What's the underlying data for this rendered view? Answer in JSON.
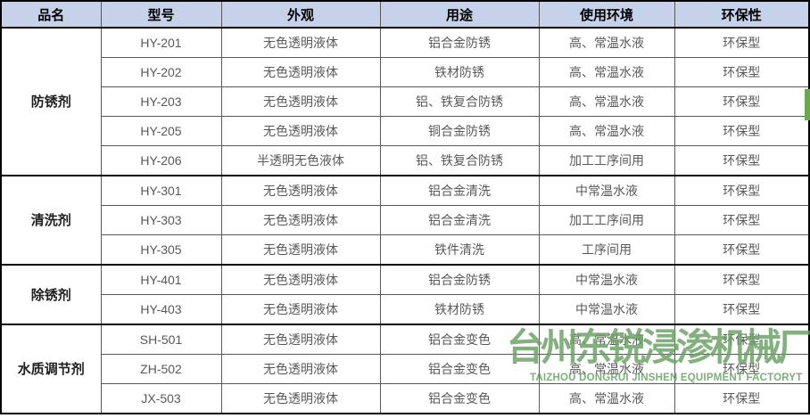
{
  "table": {
    "headers": [
      "品名",
      "型号",
      "外观",
      "用途",
      "使用环境",
      "环保性"
    ],
    "groups": [
      {
        "category": "防锈剂",
        "rows": [
          {
            "model": "HY-201",
            "appearance": "无色透明液体",
            "usage": "铝合金防锈",
            "environment": "高、常温水液",
            "eco": "环保型"
          },
          {
            "model": "HY-202",
            "appearance": "无色透明液体",
            "usage": "铁材防锈",
            "environment": "高、常温水液",
            "eco": "环保型"
          },
          {
            "model": "HY-203",
            "appearance": "无色透明液体",
            "usage": "铝、铁复合防锈",
            "environment": "高、常温水液",
            "eco": "环保型"
          },
          {
            "model": "HY-205",
            "appearance": "无色透明液体",
            "usage": "铜合金防锈",
            "environment": "高、常温水液",
            "eco": "环保型"
          },
          {
            "model": "HY-206",
            "appearance": "半透明无色液体",
            "usage": "铝、铁复合防锈",
            "environment": "加工工序间用",
            "eco": "环保型"
          }
        ]
      },
      {
        "category": "清洗剂",
        "rows": [
          {
            "model": "HY-301",
            "appearance": "无色透明液体",
            "usage": "铝合金清洗",
            "environment": "中常温水液",
            "eco": "环保型"
          },
          {
            "model": "HY-303",
            "appearance": "无色透明液体",
            "usage": "铝合金清洗",
            "environment": "加工工序间用",
            "eco": "环保型"
          },
          {
            "model": "HY-305",
            "appearance": "无色透明液体",
            "usage": "铁件清洗",
            "environment": "工序间用",
            "eco": "环保型"
          }
        ]
      },
      {
        "category": "除锈剂",
        "rows": [
          {
            "model": "HY-401",
            "appearance": "无色透明液体",
            "usage": "铝合金防锈",
            "environment": "中常温水液",
            "eco": "环保型"
          },
          {
            "model": "HY-403",
            "appearance": "无色透明液体",
            "usage": "铁材防锈",
            "environment": "中常温水液",
            "eco": "环保型"
          }
        ]
      },
      {
        "category": "水质调节剂",
        "rows": [
          {
            "model": "SH-501",
            "appearance": "无色透明液体",
            "usage": "铝合金变色",
            "environment": "高、常温水液",
            "eco": "环保型"
          },
          {
            "model": "ZH-502",
            "appearance": "无色透明液体",
            "usage": "铝合金变色",
            "environment": "高、常温水液",
            "eco": "环保型"
          },
          {
            "model": "JX-503",
            "appearance": "无色透明液体",
            "usage": "铝合金变色",
            "environment": "高、常温水液",
            "eco": "环保型"
          }
        ]
      }
    ]
  },
  "watermark": {
    "cn": "台州东锐浸渗机械厂",
    "en": "TAIZHOU DONGRUI JINSHEN EQUIPMENT FACTORYT"
  },
  "colors": {
    "header_bg": "#c6d1ea",
    "header_text": "#000000",
    "cell_text": "#595959",
    "grid": "#595959",
    "thick_border": "#000000",
    "watermark_green": "#68a162",
    "green_bar": "#6aa84f"
  }
}
